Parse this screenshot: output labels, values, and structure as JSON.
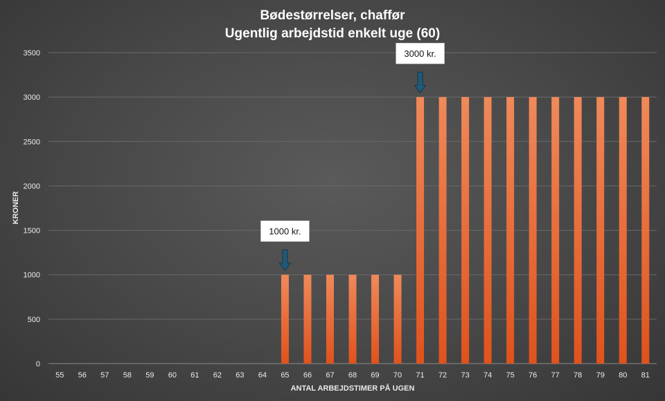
{
  "chart_data": {
    "type": "bar",
    "title": [
      "Bødestørrelser, chaffør",
      "Ugentlig arbejdstid enkelt uge (60)"
    ],
    "xlabel": "ANTAL ARBEJDSTIMER PÅ UGEN",
    "ylabel": "KRONER",
    "categories": [
      "55",
      "56",
      "57",
      "58",
      "59",
      "60",
      "61",
      "62",
      "63",
      "64",
      "65",
      "66",
      "67",
      "68",
      "69",
      "70",
      "71",
      "72",
      "73",
      "74",
      "75",
      "76",
      "77",
      "78",
      "79",
      "80",
      "81"
    ],
    "values": [
      0,
      0,
      0,
      0,
      0,
      0,
      0,
      0,
      0,
      0,
      1000,
      1000,
      1000,
      1000,
      1000,
      1000,
      3000,
      3000,
      3000,
      3000,
      3000,
      3000,
      3000,
      3000,
      3000,
      3000,
      3000
    ],
    "ylim": [
      0,
      3500
    ],
    "yticks": [
      0,
      500,
      1000,
      1500,
      2000,
      2500,
      3000,
      3500
    ],
    "grid": true,
    "annotations": [
      {
        "text": "1000 kr.",
        "category": "65",
        "value": 1000
      },
      {
        "text": "3000 kr.",
        "category": "71",
        "value": 3000
      }
    ],
    "colors": {
      "bar_top": "#f0895a",
      "bar_bottom": "#e0521c",
      "arrow": "#1f5a78",
      "gridline": "#6a6a6a",
      "callout_bg": "#ffffff"
    }
  }
}
